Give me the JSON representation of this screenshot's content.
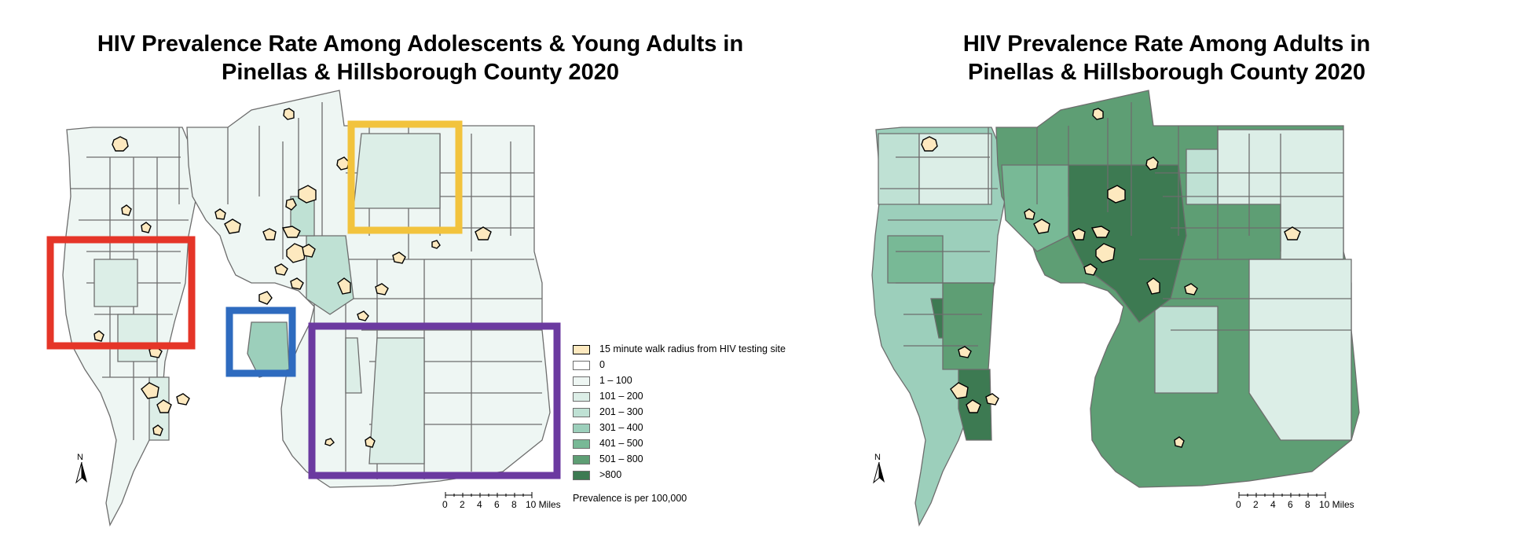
{
  "colors": {
    "c0": "#ffffff",
    "c1": "#eef6f3",
    "c2": "#dceee7",
    "c3": "#bfe1d4",
    "c4": "#9ccfbb",
    "c5": "#78b996",
    "c6": "#5e9e74",
    "c7": "#3d7a52",
    "walk": "#fde9bf",
    "red_box": "#e53528",
    "blue_box": "#2e6bbf",
    "yellow_box": "#f2c33d",
    "purple_box": "#6b3aa0",
    "boundary": "#6d6d6d"
  },
  "left_map": {
    "title": "HIV Prevalence Rate Among Adolescents & Young Adults in\nPinellas & Hillsborough County 2020",
    "legend": {
      "walk_label": "15 minute walk radius from HIV testing site",
      "classes": [
        "0",
        "1 – 100",
        "101 – 200",
        "201 – 300",
        "301 – 400",
        "401 – 500",
        "501 – 800",
        ">800"
      ],
      "note": "Prevalence is per 100,000"
    },
    "scale": {
      "labels": [
        "0",
        "2",
        "4",
        "6",
        "8",
        "10 Miles"
      ]
    },
    "north_label": "N"
  },
  "right_map": {
    "title": "HIV Prevalence Rate Among Adults in\nPinellas & Hillsborough County 2020",
    "scale": {
      "labels": [
        "0",
        "2",
        "4",
        "6",
        "8",
        "10 Miles"
      ]
    },
    "north_label": "N"
  }
}
